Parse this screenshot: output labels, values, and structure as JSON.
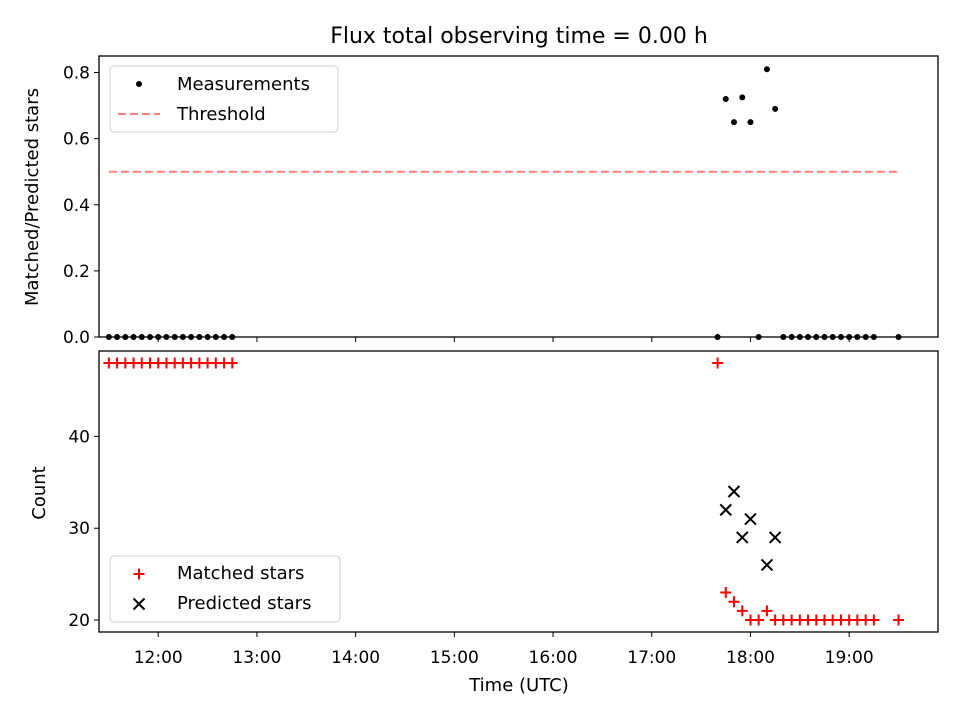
{
  "figure": {
    "title": "Flux total observing time = 0.00 h"
  },
  "chart_data": [
    {
      "type": "scatter",
      "ylabel": "Matched/Predicted stars",
      "xlabel": "",
      "xlim": [
        11.4,
        19.9
      ],
      "ylim": [
        0,
        0.85
      ],
      "yticks": [
        0.0,
        0.2,
        0.4,
        0.6,
        0.8
      ],
      "ytick_labels": [
        "0.0",
        "0.2",
        "0.4",
        "0.6",
        "0.8"
      ],
      "xticks": [
        12,
        13,
        14,
        15,
        16,
        17,
        18,
        19
      ],
      "grid": false,
      "legend": {
        "placement": "upper left",
        "entries": [
          {
            "label": "Measurements",
            "marker": "dot",
            "color": "#000000"
          },
          {
            "label": "Threshold",
            "marker": "dashed-line",
            "color": "#ff7f7f"
          }
        ]
      },
      "series": [
        {
          "name": "Measurements",
          "marker": "dot",
          "color": "#000000",
          "x": [
            11.5,
            11.583,
            11.667,
            11.75,
            11.833,
            11.917,
            12.0,
            12.083,
            12.167,
            12.25,
            12.333,
            12.417,
            12.5,
            12.583,
            12.667,
            12.75,
            17.667,
            17.75,
            17.833,
            17.917,
            18.0,
            18.083,
            18.167,
            18.25,
            18.333,
            18.417,
            18.5,
            18.583,
            18.667,
            18.75,
            18.833,
            18.917,
            19.0,
            19.083,
            19.167,
            19.25,
            19.5
          ],
          "y": [
            0,
            0,
            0,
            0,
            0,
            0,
            0,
            0,
            0,
            0,
            0,
            0,
            0,
            0,
            0,
            0,
            0,
            0.72,
            0.65,
            0.725,
            0.65,
            0,
            0.81,
            0.69,
            0,
            0,
            0,
            0,
            0,
            0,
            0,
            0,
            0,
            0,
            0,
            0,
            0
          ]
        },
        {
          "name": "Threshold",
          "type": "line",
          "style": "dashed",
          "color": "#ff7f7f",
          "x": [
            11.5,
            19.5
          ],
          "y": [
            0.5,
            0.5
          ]
        }
      ]
    },
    {
      "type": "scatter",
      "ylabel": "Count",
      "xlabel": "Time (UTC)",
      "xlim": [
        11.4,
        19.9
      ],
      "ylim": [
        18.7,
        49.3
      ],
      "yticks": [
        20,
        30,
        40
      ],
      "ytick_labels": [
        "20",
        "30",
        "40"
      ],
      "xticks": [
        12,
        13,
        14,
        15,
        16,
        17,
        18,
        19
      ],
      "xtick_labels": [
        "12:00",
        "13:00",
        "14:00",
        "15:00",
        "16:00",
        "17:00",
        "18:00",
        "19:00"
      ],
      "grid": false,
      "legend": {
        "placement": "lower left",
        "entries": [
          {
            "label": "Matched stars",
            "marker": "plus",
            "color": "#ff0000"
          },
          {
            "label": "Predicted stars",
            "marker": "x",
            "color": "#000000"
          }
        ]
      },
      "series": [
        {
          "name": "Matched stars",
          "marker": "plus",
          "color": "#ff0000",
          "x": [
            11.5,
            11.583,
            11.667,
            11.75,
            11.833,
            11.917,
            12.0,
            12.083,
            12.167,
            12.25,
            12.333,
            12.417,
            12.5,
            12.583,
            12.667,
            12.75,
            17.667,
            17.75,
            17.833,
            17.917,
            18.0,
            18.083,
            18.167,
            18.25,
            18.333,
            18.417,
            18.5,
            18.583,
            18.667,
            18.75,
            18.833,
            18.917,
            19.0,
            19.083,
            19.167,
            19.25,
            19.5
          ],
          "y": [
            48,
            48,
            48,
            48,
            48,
            48,
            48,
            48,
            48,
            48,
            48,
            48,
            48,
            48,
            48,
            48,
            48,
            23,
            22,
            21,
            20,
            20,
            21,
            20,
            20,
            20,
            20,
            20,
            20,
            20,
            20,
            20,
            20,
            20,
            20,
            20,
            20
          ]
        },
        {
          "name": "Predicted stars",
          "marker": "x",
          "color": "#000000",
          "x": [
            17.75,
            17.833,
            17.917,
            18.0,
            18.167,
            18.25
          ],
          "y": [
            32,
            34,
            29,
            31,
            26,
            29
          ]
        }
      ]
    }
  ]
}
